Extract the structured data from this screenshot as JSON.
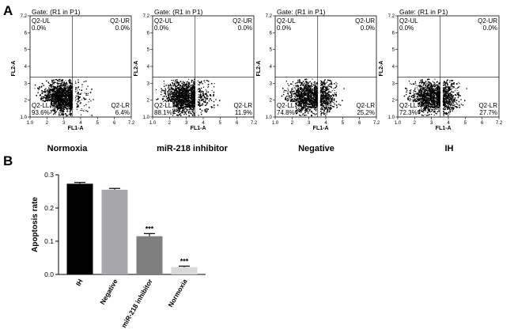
{
  "panel_labels": {
    "a": "A",
    "b": "B"
  },
  "flow_plots": [
    {
      "caption": "Normoxia",
      "gate": "Gate: (R1 in P1)",
      "ul_label": "Q2-UL",
      "ul_value": "0.0%",
      "ur_label": "Q2-UR",
      "ur_value": "0.0%",
      "ll_label": "Q2-LL",
      "ll_value": "93.6%",
      "lr_label": "Q2-LR",
      "lr_value": "6.4%",
      "x_axis_label": "FL1-A",
      "y_axis_label": "FL2-A",
      "lr_fraction": 0.064
    },
    {
      "caption": "miR-218 inhibitor",
      "gate": "Gate: (R1 in P1)",
      "ul_label": "Q2-UL",
      "ul_value": "0.0%",
      "ur_label": "Q2-UR",
      "ur_value": "0.0%",
      "ll_label": "Q2-LL",
      "ll_value": "88.1%",
      "lr_label": "Q2-LR",
      "lr_value": "11.9%",
      "x_axis_label": "FL1-A",
      "y_axis_label": "FL2-A",
      "lr_fraction": 0.119
    },
    {
      "caption": "Negative",
      "gate": "Gate: (R1 in P1)",
      "ul_label": "Q2-UL",
      "ul_value": "0.0%",
      "ur_label": "Q2-UR",
      "ur_value": "0.0%",
      "ll_label": "Q2-LL",
      "ll_value": "74.8%",
      "lr_label": "Q2-LR",
      "lr_value": "25.2%",
      "x_axis_label": "FL1-A",
      "y_axis_label": "FL2-A",
      "lr_fraction": 0.252
    },
    {
      "caption": "IH",
      "gate": "Gate: (R1 in P1)",
      "ul_label": "Q2-UL",
      "ul_value": "0.0%",
      "ur_label": "Q2-UR",
      "ur_value": "0.0%",
      "ll_label": "Q2-LL",
      "ll_value": "72.3%",
      "lr_label": "Q2-LR",
      "lr_value": "27.7%",
      "x_axis_label": "FL1-A",
      "y_axis_label": "FL2-A",
      "lr_fraction": 0.277
    }
  ],
  "flow_ticks": {
    "x": [
      "1.0",
      "2",
      "3",
      "4",
      "5",
      "6",
      "7.2"
    ],
    "y": [
      "1.0",
      "2",
      "3",
      "4",
      "5",
      "6",
      "7.2"
    ]
  },
  "chart_data": {
    "type": "bar",
    "categories": [
      "IH",
      "Negative",
      "miR-218 inhibitor",
      "Normoxia"
    ],
    "values": [
      0.273,
      0.255,
      0.115,
      0.022
    ],
    "errors": [
      0.004,
      0.004,
      0.008,
      0.003
    ],
    "significance": [
      "",
      "",
      "***",
      "***"
    ],
    "colors": [
      "#000000",
      "#a6a6ab",
      "#7f7f7f",
      "#d9d9d9"
    ],
    "xlabel": "",
    "ylabel": "Apoptosis rate",
    "ylim": [
      0,
      0.3
    ],
    "yticks": [
      0.0,
      0.1,
      0.2,
      0.3
    ],
    "ytick_labels": [
      "0.0",
      "0.1",
      "0.2",
      "0.3"
    ]
  }
}
